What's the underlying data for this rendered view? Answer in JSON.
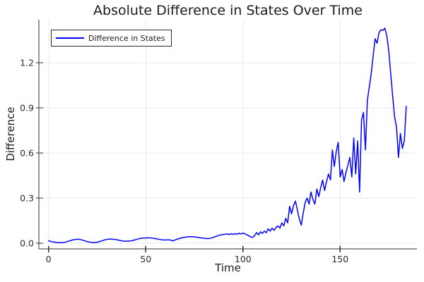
{
  "chart_data": {
    "type": "line",
    "title": "Absolute Difference in States Over Time",
    "xlabel": "Time",
    "ylabel": "Difference",
    "xlim": [
      -5,
      189.5
    ],
    "ylim": [
      -0.038,
      1.486
    ],
    "xticks": [
      0,
      50,
      100,
      150
    ],
    "xtick_labels": [
      "0",
      "50",
      "100",
      "150"
    ],
    "yticks": [
      0.0,
      0.3,
      0.6,
      0.9,
      1.2
    ],
    "ytick_labels": [
      "0.0",
      "0.3",
      "0.6",
      "0.9",
      "1.2"
    ],
    "grid": true,
    "legend_position": "top-left",
    "series": [
      {
        "name": "Difference in States",
        "color": "#0000ff",
        "x_start": 0,
        "x_step": 1,
        "values": [
          0.016,
          0.012,
          0.009,
          0.007,
          0.005,
          0.004,
          0.003,
          0.003,
          0.005,
          0.008,
          0.012,
          0.016,
          0.02,
          0.023,
          0.025,
          0.026,
          0.025,
          0.022,
          0.018,
          0.014,
          0.01,
          0.007,
          0.005,
          0.004,
          0.004,
          0.006,
          0.01,
          0.014,
          0.018,
          0.022,
          0.025,
          0.027,
          0.027,
          0.026,
          0.025,
          0.023,
          0.02,
          0.017,
          0.015,
          0.013,
          0.013,
          0.014,
          0.015,
          0.017,
          0.02,
          0.024,
          0.028,
          0.031,
          0.033,
          0.034,
          0.034,
          0.035,
          0.035,
          0.034,
          0.032,
          0.03,
          0.027,
          0.025,
          0.023,
          0.021,
          0.021,
          0.022,
          0.022,
          0.02,
          0.015,
          0.021,
          0.026,
          0.03,
          0.034,
          0.037,
          0.039,
          0.041,
          0.043,
          0.043,
          0.043,
          0.042,
          0.04,
          0.038,
          0.036,
          0.034,
          0.033,
          0.031,
          0.03,
          0.032,
          0.035,
          0.039,
          0.044,
          0.049,
          0.053,
          0.056,
          0.058,
          0.059,
          0.061,
          0.057,
          0.063,
          0.058,
          0.064,
          0.059,
          0.066,
          0.061,
          0.067,
          0.062,
          0.056,
          0.049,
          0.042,
          0.038,
          0.05,
          0.07,
          0.055,
          0.075,
          0.065,
          0.08,
          0.07,
          0.095,
          0.08,
          0.1,
          0.085,
          0.105,
          0.115,
          0.1,
          0.135,
          0.115,
          0.165,
          0.135,
          0.245,
          0.195,
          0.25,
          0.28,
          0.22,
          0.16,
          0.12,
          0.2,
          0.27,
          0.3,
          0.26,
          0.34,
          0.29,
          0.26,
          0.36,
          0.31,
          0.37,
          0.42,
          0.35,
          0.41,
          0.46,
          0.42,
          0.62,
          0.51,
          0.61,
          0.67,
          0.44,
          0.49,
          0.41,
          0.47,
          0.52,
          0.57,
          0.44,
          0.7,
          0.46,
          0.68,
          0.34,
          0.82,
          0.87,
          0.62,
          0.95,
          1.04,
          1.13,
          1.25,
          1.36,
          1.33,
          1.4,
          1.42,
          1.415,
          1.43,
          1.38,
          1.28,
          1.13,
          0.98,
          0.84,
          0.77,
          0.57,
          0.73,
          0.63,
          0.68,
          0.91
        ]
      }
    ]
  },
  "colors": {
    "line": "#0000ff",
    "grid": "#e9e9e9",
    "spine": "#2f2f2f",
    "tick_text": "#2b2b2b",
    "title_text": "#1c1c1c"
  }
}
